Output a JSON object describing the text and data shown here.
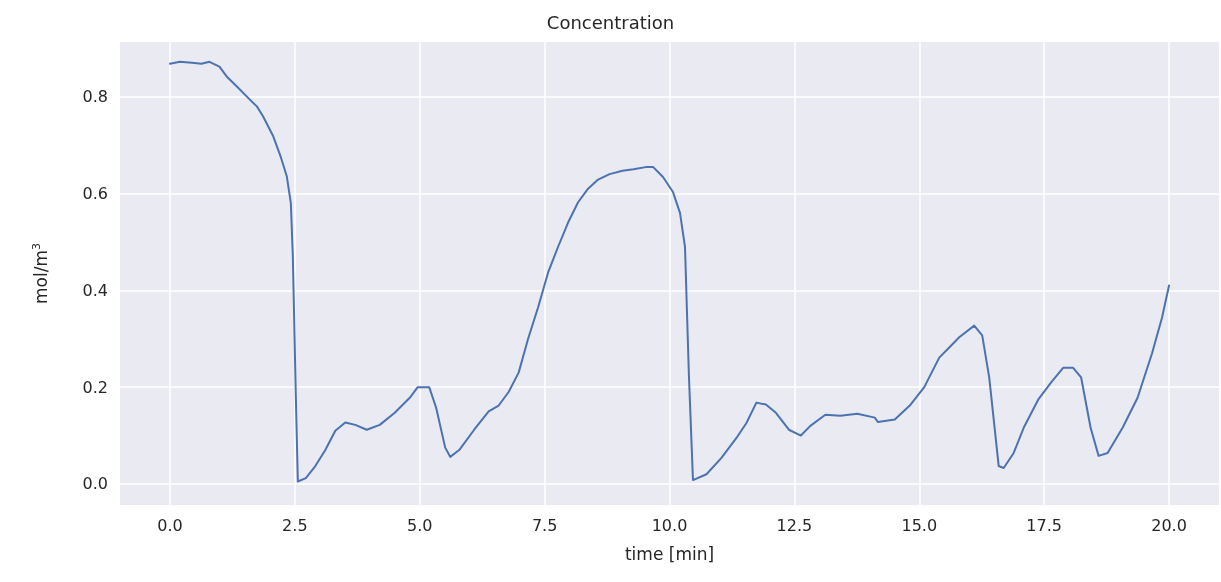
{
  "chart_data": {
    "type": "line",
    "title": "Concentration",
    "xlabel": "time [min]",
    "ylabel": "mol/m$^{3}$",
    "xlim": [
      -1,
      21
    ],
    "ylim": [
      -0.0435,
      0.913
    ],
    "xticks": [
      {
        "value": 0,
        "label": "0.0"
      },
      {
        "value": 2.5,
        "label": "2.5"
      },
      {
        "value": 5,
        "label": "5.0"
      },
      {
        "value": 7.5,
        "label": "7.5"
      },
      {
        "value": 10,
        "label": "10.0"
      },
      {
        "value": 12.5,
        "label": "12.5"
      },
      {
        "value": 15,
        "label": "15.0"
      },
      {
        "value": 17.5,
        "label": "17.5"
      },
      {
        "value": 20,
        "label": "20.0"
      }
    ],
    "yticks": [
      {
        "value": 0,
        "label": "0.0"
      },
      {
        "value": 0.2,
        "label": "0.2"
      },
      {
        "value": 0.4,
        "label": "0.4"
      },
      {
        "value": 0.6,
        "label": "0.6"
      },
      {
        "value": 0.8,
        "label": "0.8"
      }
    ],
    "grid": true,
    "marker": "none",
    "line_style": "solid",
    "series": [
      {
        "color": "#4c72b0",
        "x": [
          0,
          0.2,
          0.44,
          0.63,
          0.79,
          0.99,
          1.15,
          1.35,
          1.59,
          1.74,
          1.86,
          2.06,
          2.22,
          2.34,
          2.42,
          2.46,
          2.52,
          2.56,
          2.72,
          2.91,
          3.11,
          3.31,
          3.51,
          3.71,
          3.94,
          4.2,
          4.5,
          4.8,
          4.96,
          5.19,
          5.33,
          5.51,
          5.61,
          5.79,
          6.09,
          6.38,
          6.58,
          6.78,
          6.98,
          7.17,
          7.37,
          7.57,
          7.77,
          7.97,
          8.17,
          8.37,
          8.56,
          8.8,
          9.06,
          9.28,
          9.55,
          9.67,
          9.87,
          10.07,
          10.21,
          10.31,
          10.39,
          10.47,
          10.74,
          11.04,
          11.34,
          11.54,
          11.74,
          11.93,
          12.13,
          12.39,
          12.63,
          12.82,
          13.12,
          13.42,
          13.76,
          14.11,
          14.17,
          14.51,
          14.81,
          15.1,
          15.4,
          15.6,
          15.8,
          16.1,
          16.26,
          16.4,
          16.59,
          16.69,
          16.89,
          17.09,
          17.38,
          17.64,
          17.88,
          18.08,
          18.24,
          18.43,
          18.59,
          18.77,
          19.07,
          19.37,
          19.66,
          19.86,
          20
        ],
        "values": [
          0.868,
          0.872,
          0.87,
          0.868,
          0.872,
          0.862,
          0.84,
          0.82,
          0.795,
          0.78,
          0.76,
          0.72,
          0.675,
          0.635,
          0.58,
          0.47,
          0.18,
          0.005,
          0.012,
          0.037,
          0.07,
          0.11,
          0.127,
          0.122,
          0.112,
          0.122,
          0.147,
          0.178,
          0.2,
          0.2,
          0.157,
          0.075,
          0.056,
          0.07,
          0.112,
          0.15,
          0.162,
          0.19,
          0.23,
          0.3,
          0.365,
          0.437,
          0.49,
          0.54,
          0.582,
          0.61,
          0.628,
          0.64,
          0.647,
          0.65,
          0.655,
          0.655,
          0.634,
          0.603,
          0.56,
          0.49,
          0.22,
          0.008,
          0.02,
          0.054,
          0.095,
          0.126,
          0.168,
          0.164,
          0.147,
          0.112,
          0.1,
          0.12,
          0.143,
          0.141,
          0.145,
          0.137,
          0.128,
          0.133,
          0.162,
          0.2,
          0.261,
          0.282,
          0.303,
          0.327,
          0.307,
          0.22,
          0.037,
          0.033,
          0.064,
          0.116,
          0.174,
          0.21,
          0.24,
          0.24,
          0.22,
          0.116,
          0.058,
          0.064,
          0.116,
          0.178,
          0.27,
          0.344,
          0.41
        ]
      }
    ]
  }
}
